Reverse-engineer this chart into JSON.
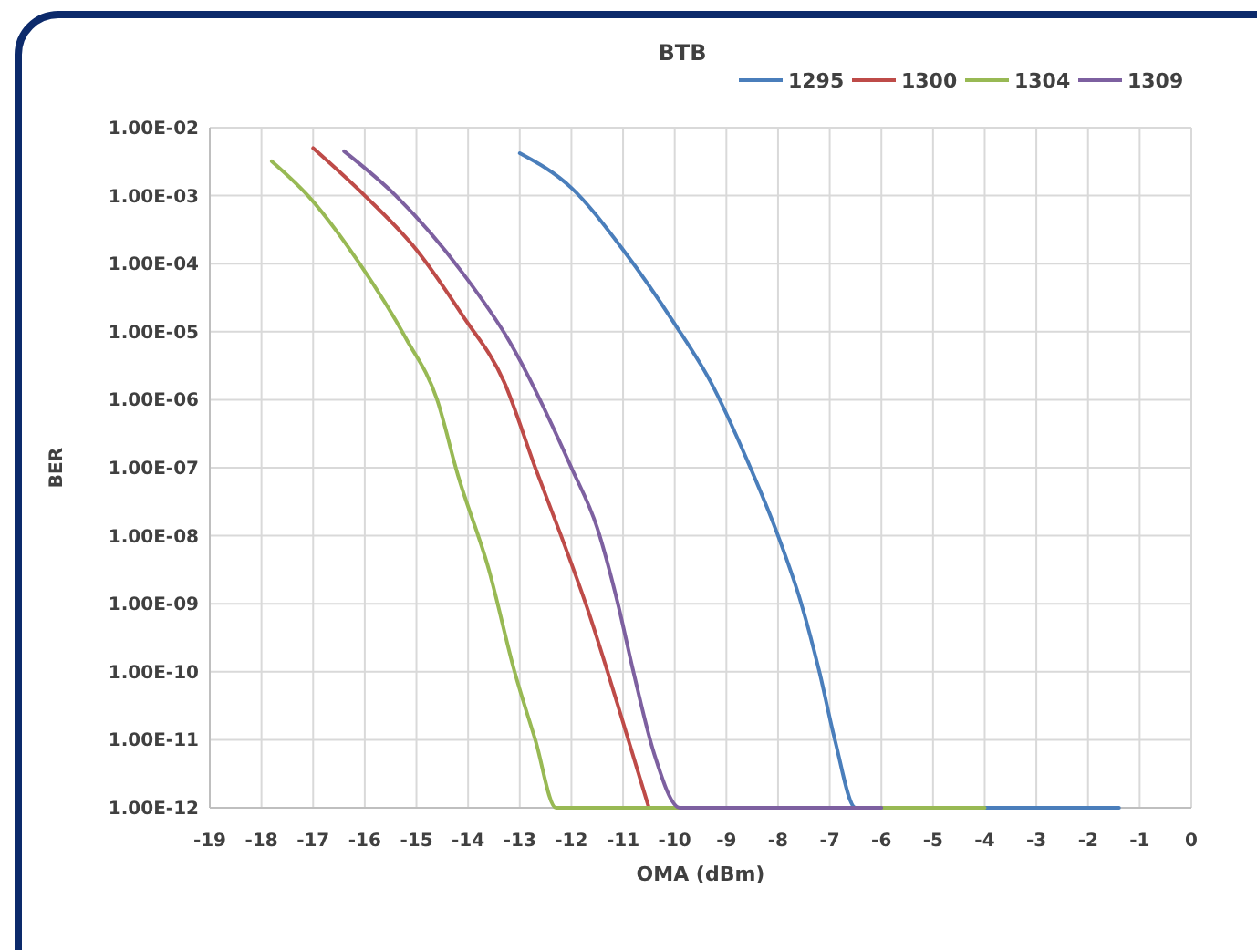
{
  "chart_data": {
    "type": "line",
    "title": "BTB",
    "xlabel": "OMA (dBm)",
    "ylabel": "BER",
    "log": "y",
    "grid": true,
    "legend": "top right",
    "line_style": "solid",
    "marker": "none",
    "xlim": [
      -19,
      0
    ],
    "xticks": [
      -19,
      -18,
      -17,
      -16,
      -15,
      -14,
      -13,
      -12,
      -11,
      -10,
      -9,
      -8,
      -7,
      -6,
      -5,
      -4,
      -3,
      -2,
      -1,
      0
    ],
    "ylim": [
      1e-12,
      0.01
    ],
    "yticks": [
      {
        "value": 1e-12,
        "label": "1.00E-12"
      },
      {
        "value": 1e-11,
        "label": "1.00E-11"
      },
      {
        "value": 1e-10,
        "label": "1.00E-10"
      },
      {
        "value": 1e-09,
        "label": "1.00E-09"
      },
      {
        "value": 1e-08,
        "label": "1.00E-08"
      },
      {
        "value": 1e-07,
        "label": "1.00E-07"
      },
      {
        "value": 1e-06,
        "label": "1.00E-06"
      },
      {
        "value": 1e-05,
        "label": "1.00E-05"
      },
      {
        "value": 0.0001,
        "label": "1.00E-04"
      },
      {
        "value": 0.001,
        "label": "1.00E-03"
      },
      {
        "value": 0.01,
        "label": "1.00E-02"
      }
    ],
    "series": [
      {
        "name": "1295",
        "color": "#4a7ebb",
        "x": [
          -13,
          -12,
          -11,
          -10,
          -9.3,
          -8.6,
          -8,
          -7.55,
          -7.2,
          -6.9,
          -6.5,
          -1.4
        ],
        "values": [
          0.0042,
          0.0013,
          0.00016,
          1.3e-05,
          1.8e-06,
          1.3e-07,
          1e-08,
          1e-09,
          1e-10,
          1e-11,
          1e-12,
          1e-12
        ]
      },
      {
        "name": "1300",
        "color": "#be4b48",
        "x": [
          -17,
          -16,
          -15,
          -14.1,
          -13.3,
          -12.7,
          -12.2,
          -11.7,
          -11.1,
          -10.5
        ],
        "values": [
          0.005,
          0.001,
          0.00016,
          1.7e-05,
          1.8e-06,
          1e-07,
          1e-08,
          8.9e-10,
          3.2e-11,
          1e-12
        ]
      },
      {
        "name": "1304",
        "color": "#98b954",
        "x": [
          -17.8,
          -17.1,
          -16.1,
          -15.2,
          -14.6,
          -14.2,
          -13.6,
          -13.1,
          -12.7,
          -12.3,
          -4
        ],
        "values": [
          0.0032,
          0.001,
          0.0001,
          7.9e-06,
          1e-06,
          7.9e-08,
          3.2e-09,
          1e-10,
          1e-11,
          1e-12,
          1e-12
        ]
      },
      {
        "name": "1309",
        "color": "#7d60a0",
        "x": [
          -16.4,
          -15.4,
          -14.1,
          -13.2,
          -12,
          -11.5,
          -11.1,
          -10.8,
          -10.4,
          -9.9,
          -6
        ],
        "values": [
          0.0045,
          0.001,
          7.2e-05,
          7.2e-06,
          1e-07,
          1.3e-08,
          1e-09,
          1e-10,
          6.3e-12,
          1e-12,
          1e-12
        ]
      }
    ]
  }
}
